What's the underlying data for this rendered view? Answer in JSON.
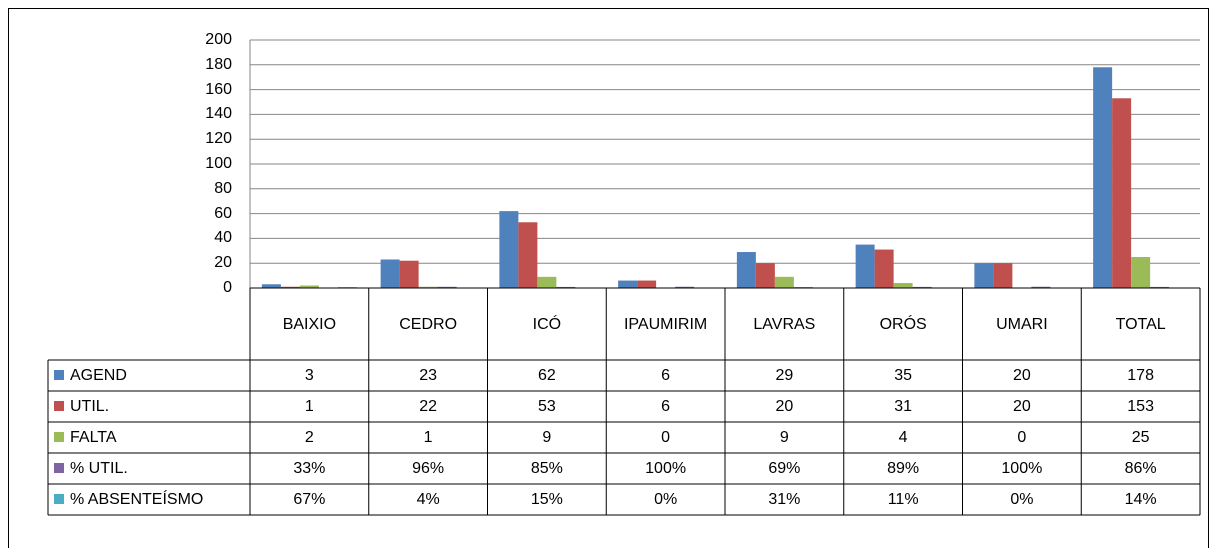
{
  "chart_data": {
    "type": "bar",
    "categories": [
      "BAIXIO",
      "CEDRO",
      "ICÓ",
      "IPAUMIRIM",
      "LAVRAS",
      "ORÓS",
      "UMARI",
      "TOTAL"
    ],
    "series": [
      {
        "name": "AGEND",
        "color": "#4f81bd",
        "values": [
          3,
          23,
          62,
          6,
          29,
          35,
          20,
          178
        ]
      },
      {
        "name": "UTIL.",
        "color": "#c0504d",
        "values": [
          1,
          22,
          53,
          6,
          20,
          31,
          20,
          153
        ]
      },
      {
        "name": "FALTA",
        "color": "#9bbb59",
        "values": [
          2,
          1,
          9,
          0,
          9,
          4,
          0,
          25
        ]
      },
      {
        "name": "% UTIL.",
        "color": "#8064a2",
        "values": [
          0.33,
          0.96,
          0.85,
          1,
          0.69,
          0.89,
          1,
          0.86
        ],
        "value_labels": [
          "33%",
          "96%",
          "85%",
          "100%",
          "69%",
          "89%",
          "100%",
          "86%"
        ]
      },
      {
        "name": "% ABSENTEÍSMO",
        "color": "#4bacc6",
        "values": [
          0.67,
          0.04,
          0.15,
          0,
          0.31,
          0.11,
          0,
          0.14
        ],
        "value_labels": [
          "67%",
          "4%",
          "15%",
          "0%",
          "31%",
          "11%",
          "0%",
          "14%"
        ]
      }
    ],
    "ylim": [
      0,
      200
    ],
    "yticks": [
      0,
      20,
      40,
      60,
      80,
      100,
      120,
      140,
      160,
      180,
      200
    ],
    "grid": true,
    "data_table": true
  }
}
